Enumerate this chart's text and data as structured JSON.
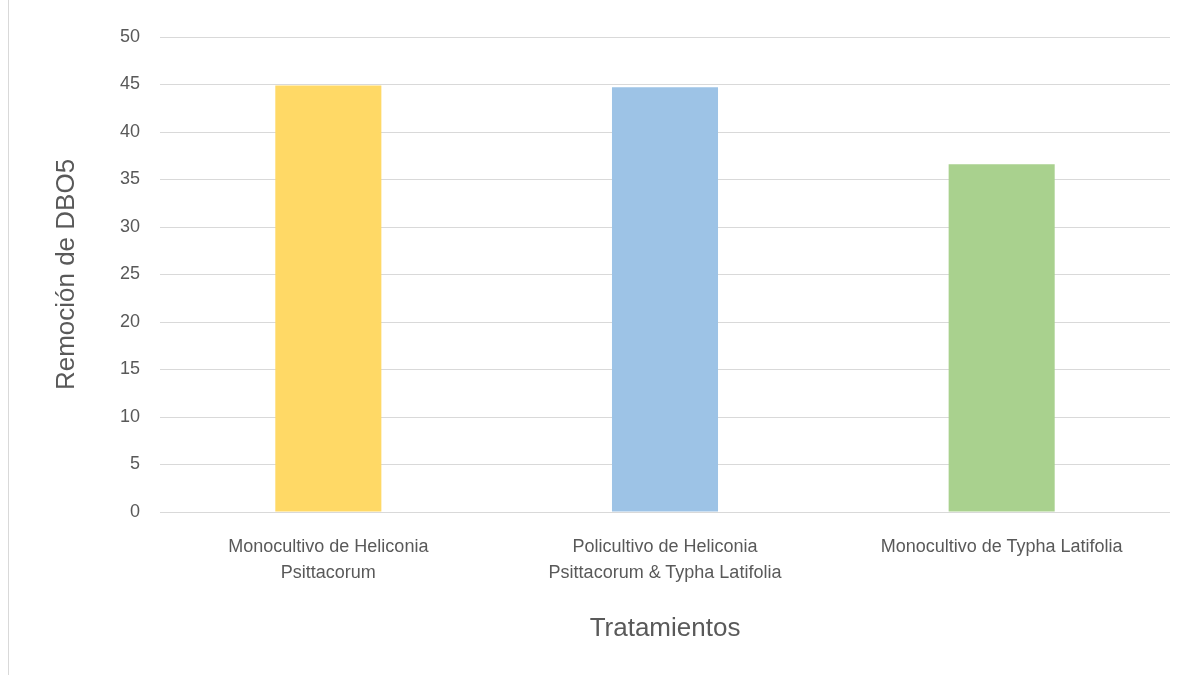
{
  "chart_data": {
    "type": "bar",
    "xlabel": "Tratamientos",
    "ylabel": "Remoción de DBO5",
    "categories": [
      "Monocultivo de Heliconia Psittacorum",
      "Policultivo de Heliconia Psittacorum & Typha Latifolia",
      "Monocultivo de Typha Latifolia"
    ],
    "values": [
      44.9,
      44.7,
      36.6
    ],
    "colors": [
      "#ffd966",
      "#9dc3e6",
      "#a9d18e"
    ],
    "ylim": [
      0,
      50
    ],
    "yticks": [
      0,
      5,
      10,
      15,
      20,
      25,
      30,
      35,
      40,
      45,
      50
    ],
    "grid": "y"
  }
}
